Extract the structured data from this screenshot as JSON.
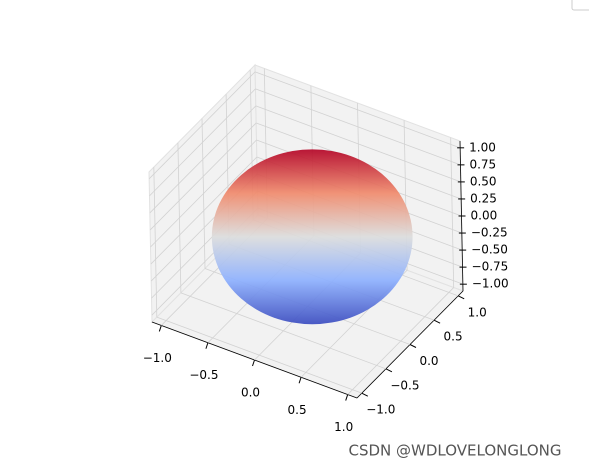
{
  "chart_data": {
    "type": "surface3d",
    "surface": "sphere",
    "radius": 1,
    "colormap": [
      "#b40426",
      "#f08a6c",
      "#dcdddd",
      "#8db0fe",
      "#3b4cc0"
    ],
    "xlim": [
      -1.1,
      1.1
    ],
    "ylim": [
      -1.1,
      1.1
    ],
    "zlim": [
      -1.1,
      1.1
    ],
    "xticks": [
      {
        "value": -1,
        "label": "−1.0"
      },
      {
        "value": -0.5,
        "label": "−0.5"
      },
      {
        "value": 0,
        "label": "0.0"
      },
      0.5,
      {
        "value": 1,
        "label": "1.0"
      }
    ],
    "yticks": [
      {
        "value": -1,
        "label": "−1.0"
      },
      {
        "value": -0.5,
        "label": "−0.5"
      },
      {
        "value": 0,
        "label": "0.0"
      },
      0.5,
      {
        "value": 1,
        "label": "1.0"
      }
    ],
    "zticks": [
      {
        "value": -1,
        "label": "−1.00"
      },
      {
        "value": -0.75,
        "label": "−0.75"
      },
      {
        "value": -0.5,
        "label": "−0.50"
      },
      {
        "value": -0.25,
        "label": "−0.25"
      },
      {
        "value": 0,
        "label": "0.00"
      },
      0.25,
      {
        "value": 0.5,
        "label": "0.50"
      },
      0.75,
      {
        "value": 1,
        "label": "1.00"
      }
    ],
    "grid": true
  },
  "watermark": "CSDN @WDLOVELONGLONG"
}
